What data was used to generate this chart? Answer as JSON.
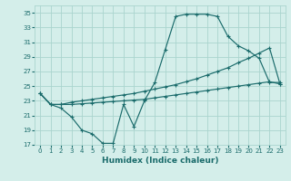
{
  "xlabel": "Humidex (Indice chaleur)",
  "bg_color": "#d4eeea",
  "grid_color": "#aad4ce",
  "line_color": "#1a6b6b",
  "xlim": [
    0,
    23
  ],
  "ylim": [
    17,
    36
  ],
  "yticks": [
    17,
    19,
    21,
    23,
    25,
    27,
    29,
    31,
    33,
    35
  ],
  "xticks": [
    0,
    1,
    2,
    3,
    4,
    5,
    6,
    7,
    8,
    9,
    10,
    11,
    12,
    13,
    14,
    15,
    16,
    17,
    18,
    19,
    20,
    21,
    22,
    23
  ],
  "line1_x": [
    0,
    1,
    2,
    3,
    4,
    5,
    6,
    7,
    8,
    9,
    10,
    11,
    12,
    13,
    14,
    15,
    16,
    17,
    18,
    19,
    20,
    21,
    22,
    23
  ],
  "line1_y": [
    24,
    22.5,
    22,
    20.8,
    19,
    18.5,
    17.2,
    17.2,
    22.5,
    19.5,
    23,
    25.5,
    30,
    34.5,
    34.8,
    34.8,
    34.8,
    34.5,
    31.8,
    30.5,
    29.8,
    28.8,
    25.5,
    25.5
  ],
  "line2_x": [
    0,
    1,
    2,
    3,
    4,
    5,
    6,
    7,
    8,
    9,
    10,
    11,
    12,
    13,
    14,
    15,
    16,
    17,
    18,
    19,
    20,
    21,
    22,
    23
  ],
  "line2_y": [
    24,
    22.5,
    22.5,
    22.8,
    23.0,
    23.2,
    23.4,
    23.6,
    23.8,
    24.0,
    24.3,
    24.6,
    24.9,
    25.2,
    25.6,
    26.0,
    26.5,
    27.0,
    27.5,
    28.2,
    28.8,
    29.5,
    30.2,
    25.3
  ],
  "line3_x": [
    0,
    1,
    2,
    3,
    4,
    5,
    6,
    7,
    8,
    9,
    10,
    11,
    12,
    13,
    14,
    15,
    16,
    17,
    18,
    19,
    20,
    21,
    22,
    23
  ],
  "line3_y": [
    24,
    22.5,
    22.5,
    22.5,
    22.6,
    22.7,
    22.8,
    22.9,
    23.0,
    23.1,
    23.2,
    23.4,
    23.6,
    23.8,
    24.0,
    24.2,
    24.4,
    24.6,
    24.8,
    25.0,
    25.2,
    25.4,
    25.6,
    25.3
  ]
}
